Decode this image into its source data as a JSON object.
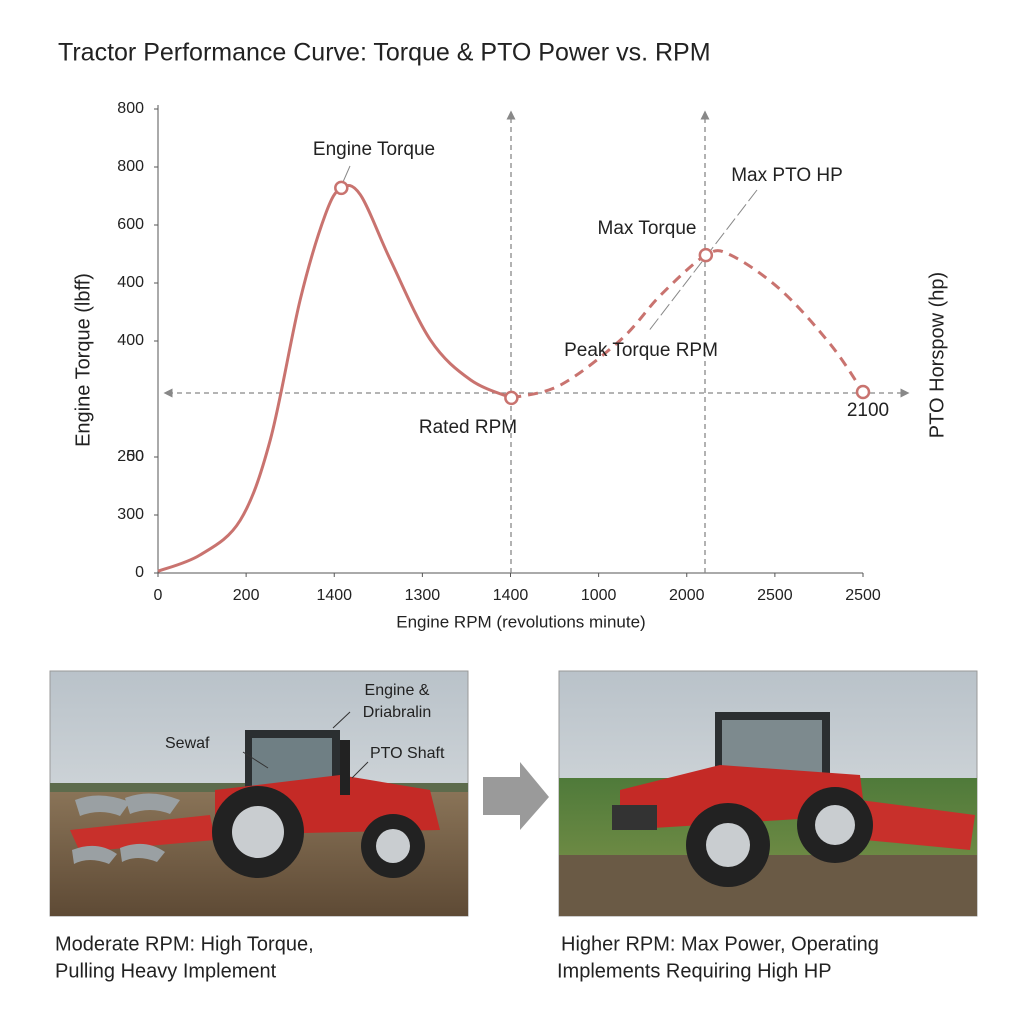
{
  "chart_data": {
    "type": "line",
    "title": "Tractor Performance Curve: Torque & PTO Power vs. RPM",
    "xlabel": "Engine RPM (revolutions minute)",
    "ylabel": "Engine Torque (lbff)",
    "y2label": "PTO Horspow (hp)",
    "xlim": [
      0,
      2400
    ],
    "xticks": [
      0,
      {
        "value": 300,
        "label": "200"
      },
      {
        "value": 600,
        "label": "1400"
      },
      {
        "value": 900,
        "label": "1300"
      },
      {
        "value": 1200,
        "label": "1400"
      },
      {
        "value": 1500,
        "label": "1000"
      },
      {
        "value": 1800,
        "label": "2000"
      },
      {
        "value": 2100,
        "label": "2500"
      },
      {
        "value": 2400,
        "label": "2500"
      }
    ],
    "ylim": [
      0,
      800
    ],
    "yticks": [
      0,
      {
        "value": 100,
        "label": "300"
      },
      {
        "value": 200,
        "label": "50"
      },
      200,
      {
        "value": 400,
        "label": "400"
      },
      {
        "value": 500,
        "label": "400"
      },
      {
        "value": 600,
        "label": "600"
      },
      {
        "value": 700,
        "label": "800"
      },
      800
    ],
    "series": [
      {
        "color": "#c9736f",
        "dashed": false,
        "x": [
          0,
          143,
          280,
          382,
          484,
          569,
          624,
          689,
          791,
          927,
          1064,
          1203
        ],
        "values": [
          3,
          31,
          91,
          229,
          471,
          617,
          664,
          652,
          540,
          402,
          333,
          302
        ]
      },
      {
        "color": "#c9736f",
        "dashed": true,
        "x": [
          1203,
          1370,
          1575,
          1711,
          1865,
          1950,
          2120,
          2291,
          2400
        ],
        "values": [
          302,
          324,
          402,
          479,
          548,
          548,
          488,
          393,
          312
        ]
      }
    ],
    "annotations": [
      "Engine Torque",
      "Max PTO HP",
      "Max Torque",
      "Peak Torque RPM",
      "Rated RPM",
      "2100"
    ]
  },
  "images": [
    {
      "labels": [
        "Engine &",
        "Driabralin",
        "Sewaf",
        "PTO Shaft"
      ],
      "caption": [
        "Moderate RPM: High Torque,",
        "Pulling Heavy Implement"
      ]
    },
    {
      "caption": [
        "Higher RPM: Max Power, Operating",
        "Implements Requiring High HP"
      ]
    }
  ]
}
